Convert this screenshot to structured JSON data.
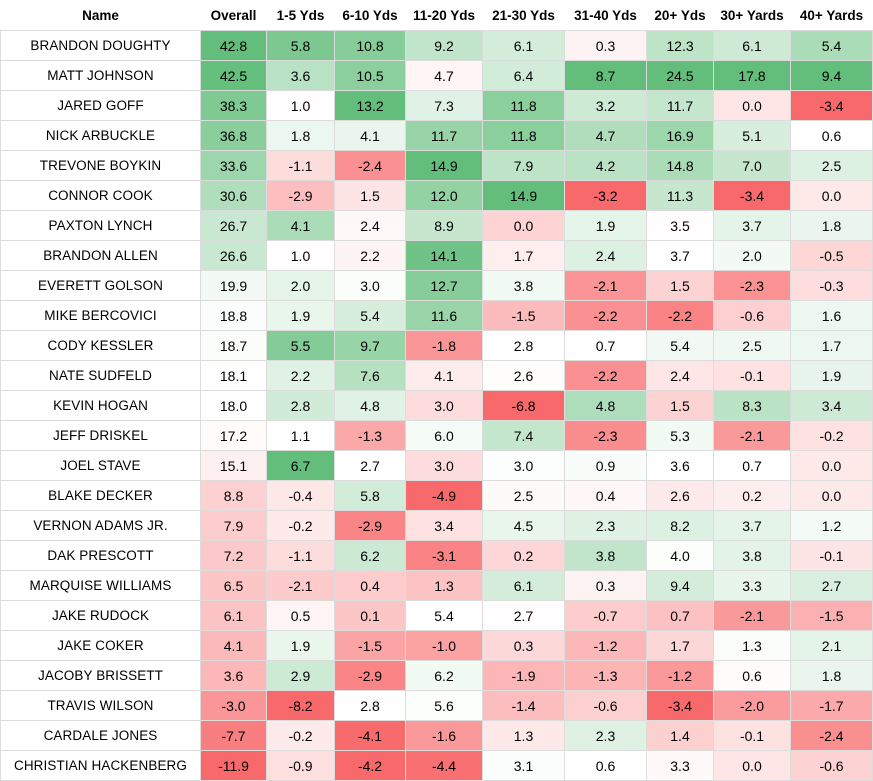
{
  "chart_data": {
    "type": "table",
    "columns": [
      "Name",
      "Overall",
      "1-5 Yds",
      "6-10 Yds",
      "11-20 Yds",
      "21-30 Yds",
      "31-40 Yds",
      "20+ Yds",
      "30+ Yards",
      "40+ Yards"
    ],
    "rows": [
      {
        "name": "BRANDON DOUGHTY",
        "values": [
          42.8,
          5.8,
          10.8,
          9.2,
          6.1,
          0.3,
          12.3,
          6.1,
          5.4
        ]
      },
      {
        "name": "MATT JOHNSON",
        "values": [
          42.5,
          3.6,
          10.5,
          4.7,
          6.4,
          8.7,
          24.5,
          17.8,
          9.4
        ]
      },
      {
        "name": "JARED GOFF",
        "values": [
          38.3,
          1.0,
          13.2,
          7.3,
          11.8,
          3.2,
          11.7,
          0.0,
          -3.4
        ]
      },
      {
        "name": "NICK ARBUCKLE",
        "values": [
          36.8,
          1.8,
          4.1,
          11.7,
          11.8,
          4.7,
          16.9,
          5.1,
          0.6
        ]
      },
      {
        "name": "TREVONE BOYKIN",
        "values": [
          33.6,
          -1.1,
          -2.4,
          14.9,
          7.9,
          4.2,
          14.8,
          7.0,
          2.5
        ]
      },
      {
        "name": "CONNOR COOK",
        "values": [
          30.6,
          -2.9,
          1.5,
          12.0,
          14.9,
          -3.2,
          11.3,
          -3.4,
          0.0
        ]
      },
      {
        "name": "PAXTON LYNCH",
        "values": [
          26.7,
          4.1,
          2.4,
          8.9,
          0.0,
          1.9,
          3.5,
          3.7,
          1.8
        ]
      },
      {
        "name": "BRANDON ALLEN",
        "values": [
          26.6,
          1.0,
          2.2,
          14.1,
          1.7,
          2.4,
          3.7,
          2.0,
          -0.5
        ]
      },
      {
        "name": "EVERETT GOLSON",
        "values": [
          19.9,
          2.0,
          3.0,
          12.7,
          3.8,
          -2.1,
          1.5,
          -2.3,
          -0.3
        ]
      },
      {
        "name": "MIKE BERCOVICI",
        "values": [
          18.8,
          1.9,
          5.4,
          11.6,
          -1.5,
          -2.2,
          -2.2,
          -0.6,
          1.6
        ]
      },
      {
        "name": "CODY KESSLER",
        "values": [
          18.7,
          5.5,
          9.7,
          -1.8,
          2.8,
          0.7,
          5.4,
          2.5,
          1.7
        ]
      },
      {
        "name": "NATE SUDFELD",
        "values": [
          18.1,
          2.2,
          7.6,
          4.1,
          2.6,
          -2.2,
          2.4,
          -0.1,
          1.9
        ]
      },
      {
        "name": "KEVIN HOGAN",
        "values": [
          18.0,
          2.8,
          4.8,
          3.0,
          -6.8,
          4.8,
          1.5,
          8.3,
          3.4
        ]
      },
      {
        "name": "JEFF DRISKEL",
        "values": [
          17.2,
          1.1,
          -1.3,
          6.0,
          7.4,
          -2.3,
          5.3,
          -2.1,
          -0.2
        ]
      },
      {
        "name": "JOEL STAVE",
        "values": [
          15.1,
          6.7,
          2.7,
          3.0,
          3.0,
          0.9,
          3.6,
          0.7,
          0.0
        ]
      },
      {
        "name": "BLAKE DECKER",
        "values": [
          8.8,
          -0.4,
          5.8,
          -4.9,
          2.5,
          0.4,
          2.6,
          0.2,
          0.0
        ]
      },
      {
        "name": "VERNON ADAMS JR.",
        "values": [
          7.9,
          -0.2,
          -2.9,
          3.4,
          4.5,
          2.3,
          8.2,
          3.7,
          1.2
        ]
      },
      {
        "name": "DAK PRESCOTT",
        "values": [
          7.2,
          -1.1,
          6.2,
          -3.1,
          0.2,
          3.8,
          4.0,
          3.8,
          -0.1
        ]
      },
      {
        "name": "MARQUISE WILLIAMS",
        "values": [
          6.5,
          -2.1,
          0.4,
          1.3,
          6.1,
          0.3,
          9.4,
          3.3,
          2.7
        ]
      },
      {
        "name": "JAKE RUDOCK",
        "values": [
          6.1,
          0.5,
          0.1,
          5.4,
          2.7,
          -0.7,
          0.7,
          -2.1,
          -1.5
        ]
      },
      {
        "name": "JAKE COKER",
        "values": [
          4.1,
          1.9,
          -1.5,
          -1.0,
          0.3,
          -1.2,
          1.7,
          1.3,
          2.1
        ]
      },
      {
        "name": "JACOBY BRISSETT",
        "values": [
          3.6,
          2.9,
          -2.9,
          6.2,
          -1.9,
          -1.3,
          -1.2,
          0.6,
          1.8
        ]
      },
      {
        "name": "TRAVIS WILSON",
        "values": [
          -3.0,
          -8.2,
          2.8,
          5.6,
          -1.4,
          -0.6,
          -3.4,
          -2.0,
          -1.7
        ]
      },
      {
        "name": "CARDALE JONES",
        "values": [
          -7.7,
          -0.2,
          -4.1,
          -1.6,
          1.3,
          2.3,
          1.4,
          -0.1,
          -2.4
        ]
      },
      {
        "name": "CHRISTIAN HACKENBERG",
        "values": [
          -11.9,
          -0.9,
          -4.2,
          -4.4,
          3.1,
          0.6,
          3.3,
          0.0,
          -0.6
        ]
      }
    ],
    "colors": {
      "positive": "#63be7b",
      "negative": "#f8696b",
      "neutral": "#ffffff"
    }
  }
}
